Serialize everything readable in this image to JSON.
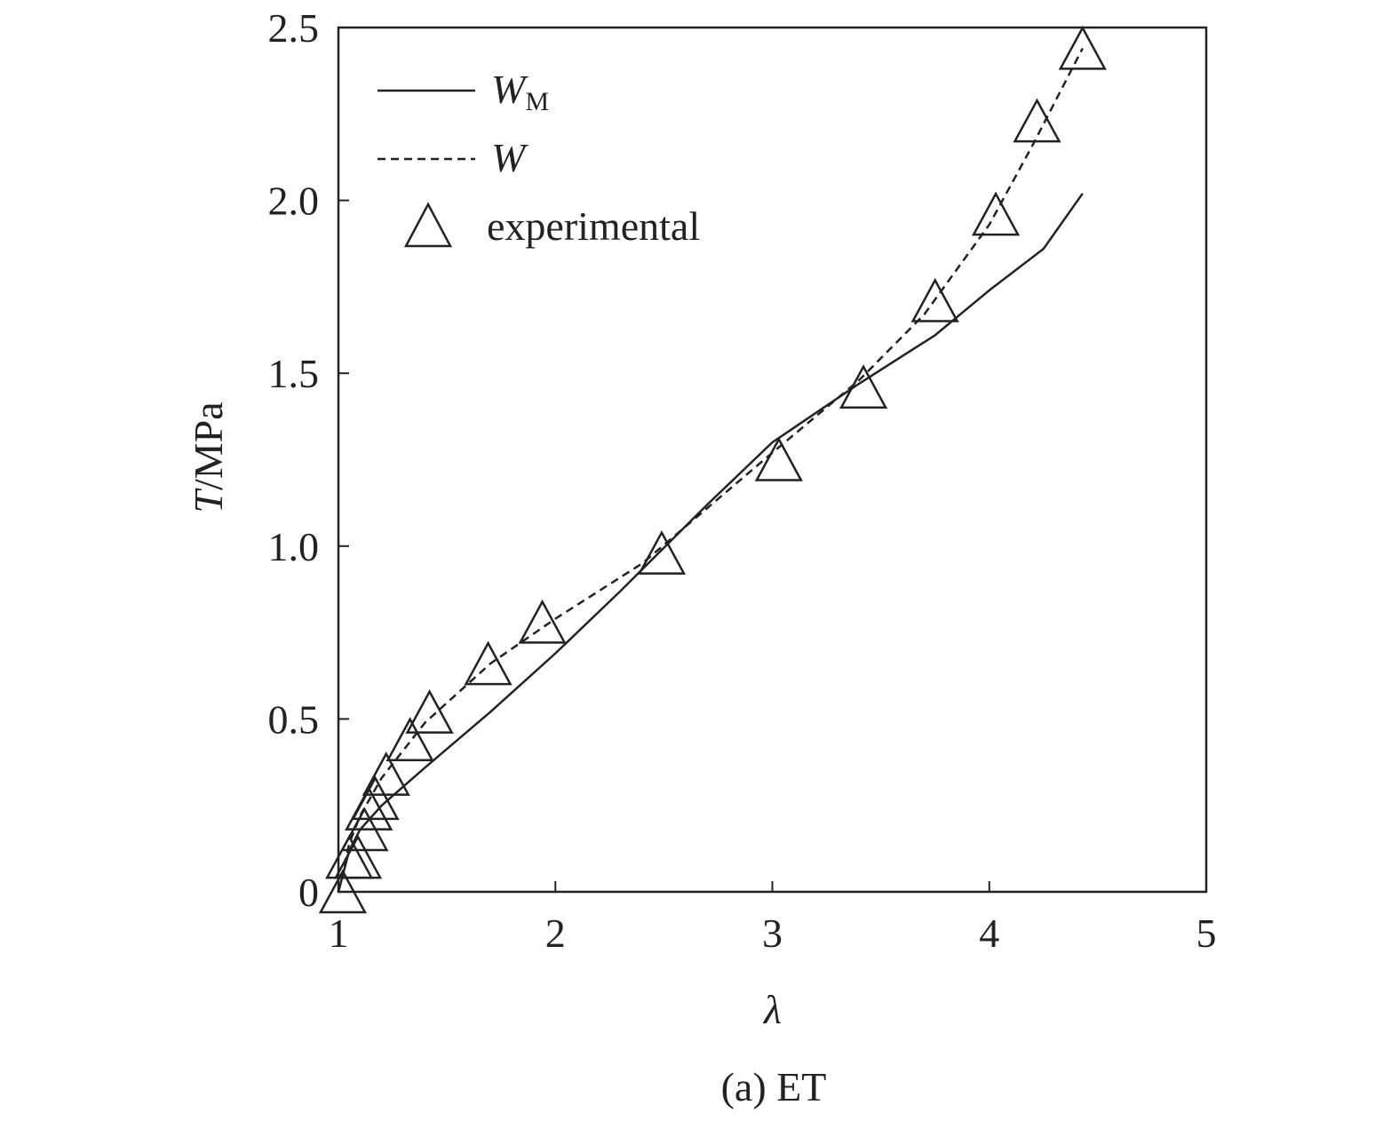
{
  "chart_data": {
    "type": "line",
    "caption": "(a) ET",
    "xlabel": "λ",
    "ylabel": {
      "italic": "T",
      "rest": "/MPa"
    },
    "xlim": [
      1,
      5
    ],
    "ylim": [
      0,
      2.5
    ],
    "x_ticks": [
      "1",
      "2",
      "3",
      "4",
      "5"
    ],
    "y_ticks": [
      "0",
      "0.5",
      "1.0",
      "1.5",
      "2.0",
      "2.5"
    ],
    "x_tick_values": [
      1,
      2,
      3,
      4,
      5
    ],
    "y_tick_values": [
      0,
      0.5,
      1.0,
      1.5,
      2.0,
      2.5
    ],
    "grid": false,
    "legend_position": "top-left",
    "series": [
      {
        "name": "W_M",
        "legend_main": "W",
        "legend_sub": "M",
        "style": "solid",
        "color": "#222222",
        "x": [
          1.0,
          1.05,
          1.1,
          1.2,
          1.4,
          1.7,
          2.0,
          2.3,
          2.7,
          3.0,
          3.4,
          3.75,
          4.0,
          4.25,
          4.43
        ],
        "y": [
          0.0,
          0.12,
          0.18,
          0.25,
          0.36,
          0.52,
          0.69,
          0.87,
          1.12,
          1.3,
          1.47,
          1.61,
          1.74,
          1.86,
          2.02
        ]
      },
      {
        "name": "W",
        "legend_main": "W",
        "legend_sub": "",
        "style": "dashed",
        "color": "#222222",
        "x": [
          1.0,
          1.05,
          1.1,
          1.2,
          1.4,
          1.7,
          2.0,
          2.4,
          2.7,
          3.0,
          3.4,
          3.7,
          4.0,
          4.2,
          4.43
        ],
        "y": [
          0.0,
          0.14,
          0.22,
          0.33,
          0.49,
          0.66,
          0.79,
          0.95,
          1.11,
          1.27,
          1.48,
          1.67,
          1.93,
          2.16,
          2.44
        ]
      },
      {
        "name": "experimental",
        "style": "markers",
        "marker": "triangle",
        "color": "#222222",
        "x": [
          1.02,
          1.05,
          1.09,
          1.12,
          1.14,
          1.17,
          1.22,
          1.33,
          1.42,
          1.69,
          1.94,
          2.49,
          3.03,
          3.42,
          3.75,
          4.03,
          4.22,
          4.43
        ],
        "y": [
          0.0,
          0.1,
          0.1,
          0.18,
          0.24,
          0.27,
          0.34,
          0.44,
          0.52,
          0.66,
          0.78,
          0.98,
          1.25,
          1.46,
          1.71,
          1.96,
          2.23,
          2.44
        ]
      }
    ]
  }
}
